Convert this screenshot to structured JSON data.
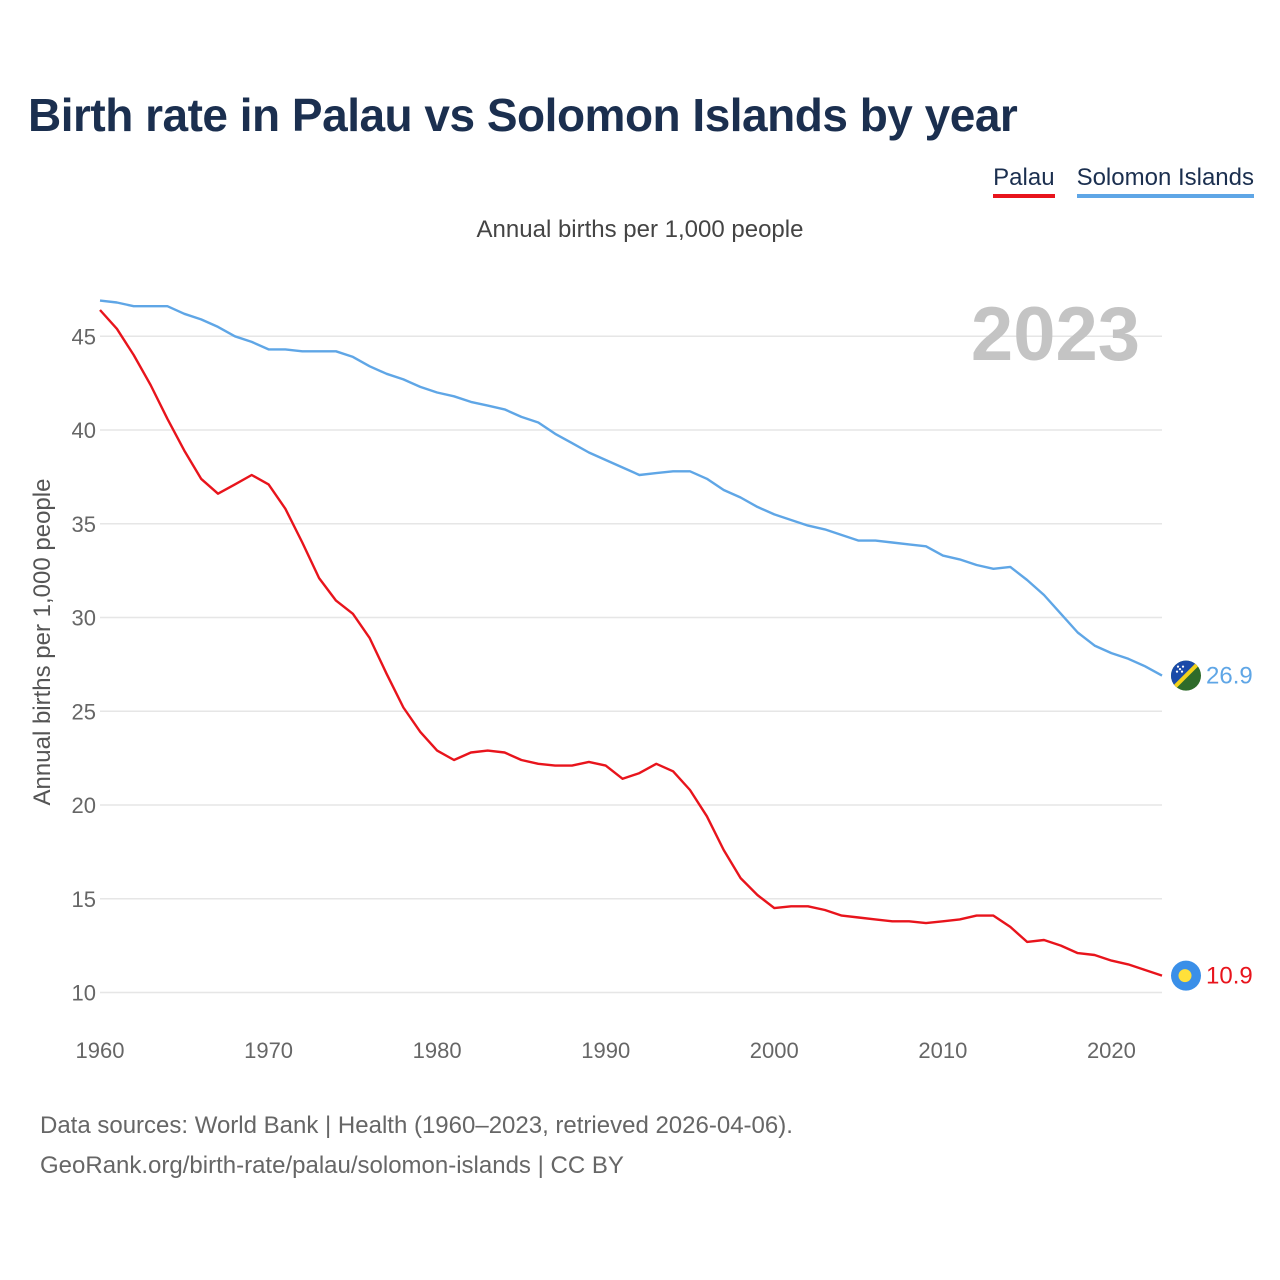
{
  "title": "Birth rate in Palau vs Solomon Islands by year",
  "subtitle": "Annual births per 1,000 people",
  "year_watermark": "2023",
  "source_line1": "Data sources: World Bank | Health (1960–2023, retrieved 2026-04-06).",
  "source_line2": "GeoRank.org/birth-rate/palau/solomon-islands | CC BY",
  "flag_icons": [
    "solomon-islands-flag-icon",
    "palau-flag-icon"
  ],
  "chart_data": {
    "type": "line",
    "title": "Birth rate in Palau vs Solomon Islands by year",
    "ylabel": "Annual births per 1,000 people",
    "xlabel": "",
    "xlim": [
      1960,
      2023
    ],
    "ylim": [
      8,
      48
    ],
    "grid": true,
    "legend": "top-right",
    "x_ticks": [
      1960,
      1970,
      1980,
      1990,
      2000,
      2010,
      2020
    ],
    "y_ticks": [
      10,
      15,
      20,
      25,
      30,
      35,
      40,
      45
    ],
    "x": [
      1960,
      1961,
      1962,
      1963,
      1964,
      1965,
      1966,
      1967,
      1968,
      1969,
      1970,
      1971,
      1972,
      1973,
      1974,
      1975,
      1976,
      1977,
      1978,
      1979,
      1980,
      1981,
      1982,
      1983,
      1984,
      1985,
      1986,
      1987,
      1988,
      1989,
      1990,
      1991,
      1992,
      1993,
      1994,
      1995,
      1996,
      1997,
      1998,
      1999,
      2000,
      2001,
      2002,
      2003,
      2004,
      2005,
      2006,
      2007,
      2008,
      2009,
      2010,
      2011,
      2012,
      2013,
      2014,
      2015,
      2016,
      2017,
      2018,
      2019,
      2020,
      2021,
      2022,
      2023
    ],
    "series": [
      {
        "name": "Palau",
        "color": "#e8141c",
        "end_label": "10.9",
        "values": [
          46.4,
          45.4,
          44.0,
          42.4,
          40.6,
          38.9,
          37.4,
          36.6,
          37.1,
          37.6,
          37.1,
          35.8,
          34.0,
          32.1,
          30.9,
          30.2,
          28.9,
          27.0,
          25.2,
          23.9,
          22.9,
          22.4,
          22.8,
          22.9,
          22.8,
          22.4,
          22.2,
          22.1,
          22.1,
          22.3,
          22.1,
          21.4,
          21.7,
          22.2,
          21.8,
          20.8,
          19.4,
          17.6,
          16.1,
          15.2,
          14.5,
          14.6,
          14.6,
          14.4,
          14.1,
          14.0,
          13.9,
          13.8,
          13.8,
          13.7,
          13.8,
          13.9,
          14.1,
          14.1,
          13.5,
          12.7,
          12.8,
          12.5,
          12.1,
          12.0,
          11.7,
          11.5,
          11.2,
          10.9
        ]
      },
      {
        "name": "Solomon Islands",
        "color": "#5fa6e6",
        "end_label": "26.9",
        "values": [
          46.9,
          46.8,
          46.6,
          46.6,
          46.6,
          46.2,
          45.9,
          45.5,
          45.0,
          44.7,
          44.3,
          44.3,
          44.2,
          44.2,
          44.2,
          43.9,
          43.4,
          43.0,
          42.7,
          42.3,
          42.0,
          41.8,
          41.5,
          41.3,
          41.1,
          40.7,
          40.4,
          39.8,
          39.3,
          38.8,
          38.4,
          38.0,
          37.6,
          37.7,
          37.8,
          37.8,
          37.4,
          36.8,
          36.4,
          35.9,
          35.5,
          35.2,
          34.9,
          34.7,
          34.4,
          34.1,
          34.1,
          34.0,
          33.9,
          33.8,
          33.3,
          33.1,
          32.8,
          32.6,
          32.7,
          32.0,
          31.2,
          30.2,
          29.2,
          28.5,
          28.1,
          27.8,
          27.4,
          26.9
        ]
      }
    ]
  }
}
